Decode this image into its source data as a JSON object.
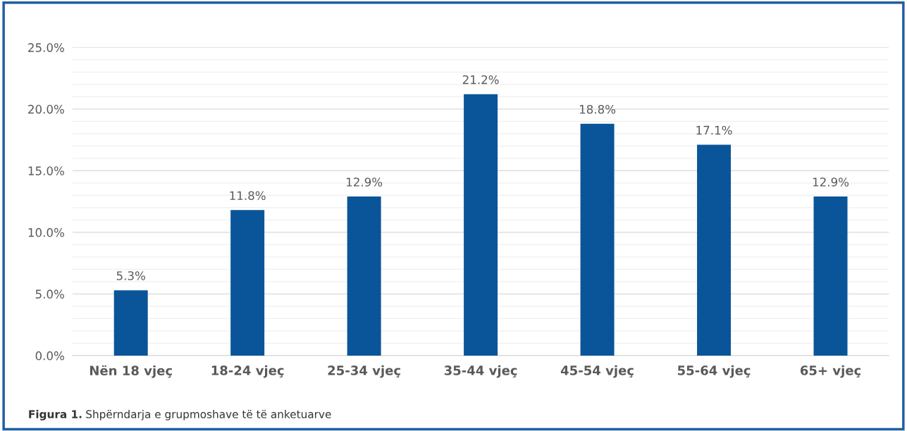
{
  "chart_data": {
    "type": "bar",
    "categories": [
      "Nën 18 vjeç",
      "18-24 vjeç",
      "25-34 vjeç",
      "35-44 vjeç",
      "45-54 vjeç",
      "55-64 vjeç",
      "65+ vjeç"
    ],
    "values": [
      5.3,
      11.8,
      12.9,
      21.2,
      18.8,
      17.1,
      12.9
    ],
    "value_labels": [
      "5.3%",
      "11.8%",
      "12.9%",
      "21.2%",
      "18.8%",
      "17.1%",
      "12.9%"
    ],
    "color": "#0a5599",
    "ylim": [
      0,
      25
    ],
    "yticks": [
      {
        "value": 0,
        "label": "0.0%"
      },
      {
        "value": 1,
        "label": null
      },
      {
        "value": 2,
        "label": null
      },
      {
        "value": 3,
        "label": null
      },
      {
        "value": 4,
        "label": null
      },
      {
        "value": 5,
        "label": "5.0%"
      },
      {
        "value": 6,
        "label": null
      },
      {
        "value": 7,
        "label": null
      },
      {
        "value": 8,
        "label": null
      },
      {
        "value": 9,
        "label": null
      },
      {
        "value": 10,
        "label": "10.0%"
      },
      {
        "value": 11,
        "label": null
      },
      {
        "value": 12,
        "label": null
      },
      {
        "value": 13,
        "label": null
      },
      {
        "value": 14,
        "label": null
      },
      {
        "value": 15,
        "label": "15.0%"
      },
      {
        "value": 16,
        "label": null
      },
      {
        "value": 17,
        "label": null
      },
      {
        "value": 18,
        "label": null
      },
      {
        "value": 19,
        "label": null
      },
      {
        "value": 20,
        "label": "20.0%"
      },
      {
        "value": 21,
        "label": null
      },
      {
        "value": 22,
        "label": null
      },
      {
        "value": 23,
        "label": null
      },
      {
        "value": 24,
        "label": null
      },
      {
        "value": 25,
        "label": "25.0%"
      }
    ],
    "grid": "y",
    "legend": false,
    "annotations": [
      "Figura 1.",
      "Shpërndarja e grupmoshave të të anketuarve"
    ]
  }
}
